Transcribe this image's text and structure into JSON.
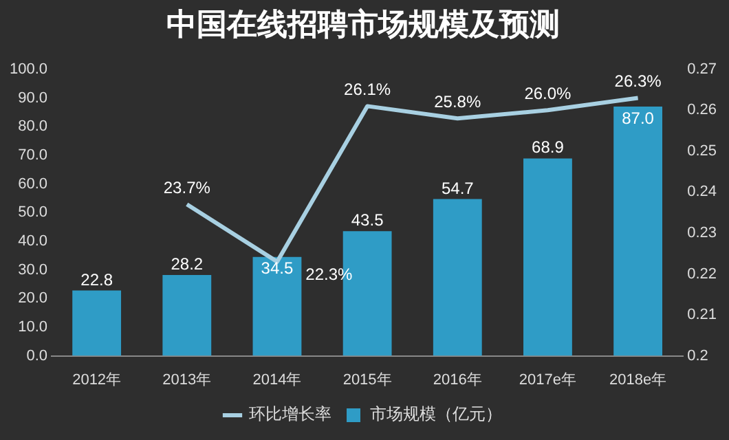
{
  "chart_data": {
    "type": "bar",
    "title": "中国在线招聘市场规模及预测",
    "categories": [
      "2012年",
      "2013年",
      "2014年",
      "2015年",
      "2016年",
      "2017e年",
      "2018e年"
    ],
    "series": [
      {
        "name": "市场规模（亿元）",
        "color": "#2f9cc6",
        "values": [
          22.8,
          28.2,
          34.5,
          43.5,
          54.7,
          68.9,
          87.0
        ],
        "value_labels": [
          "22.8",
          "28.2",
          "34.5",
          "43.5",
          "54.7",
          "68.9",
          "87.0"
        ]
      },
      {
        "name": "环比增长率",
        "type": "line",
        "axis": "y2",
        "color": "#a8d0e2",
        "values": [
          null,
          0.237,
          0.223,
          0.261,
          0.258,
          0.26,
          0.263
        ],
        "value_labels": [
          null,
          "23.7%",
          "22.3%",
          "26.1%",
          "25.8%",
          "26.0%",
          "26.3%"
        ]
      }
    ],
    "ylim": [
      0,
      100
    ],
    "yticks": [
      {
        "value": 0,
        "label": "0.0"
      },
      {
        "value": 10,
        "label": "10.0"
      },
      {
        "value": 20,
        "label": "20.0"
      },
      {
        "value": 30,
        "label": "30.0"
      },
      {
        "value": 40,
        "label": "40.0"
      },
      {
        "value": 50,
        "label": "50.0"
      },
      {
        "value": 60,
        "label": "60.0"
      },
      {
        "value": 70,
        "label": "70.0"
      },
      {
        "value": 80,
        "label": "80.0"
      },
      {
        "value": 90,
        "label": "90.0"
      },
      {
        "value": 100,
        "label": "100.0"
      }
    ],
    "y2lim": [
      0.2,
      0.27
    ],
    "y2ticks": [
      0.2,
      0.21,
      0.22,
      0.23,
      0.24,
      0.25,
      0.26,
      0.27
    ],
    "legend": "bottom",
    "grid": false,
    "marker": "none",
    "line_style": "solid"
  }
}
